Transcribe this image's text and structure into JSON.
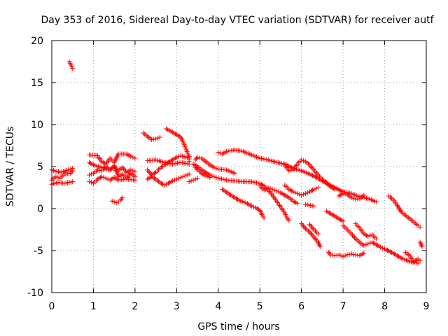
{
  "chart_data": {
    "type": "scatter",
    "title": "Day 353 of 2016, Sidereal Day-to-day VTEC variation (SDTVAR) for receiver autf",
    "xlabel": "GPS time / hours",
    "ylabel": "SDTVAR / TECUs",
    "xlim": [
      0,
      9
    ],
    "ylim": [
      -10,
      20
    ],
    "xticks": [
      0,
      1,
      2,
      3,
      4,
      5,
      6,
      7,
      8,
      9
    ],
    "yticks": [
      -10,
      -5,
      0,
      5,
      10,
      15,
      20
    ],
    "grid": true,
    "marker": "+",
    "color": "#ff0000",
    "segments": [
      {
        "name": "arc-01",
        "points": [
          [
            0.0,
            4.6
          ],
          [
            0.2,
            4.3
          ],
          [
            0.4,
            4.6
          ],
          [
            0.5,
            4.8
          ]
        ]
      },
      {
        "name": "arc-02",
        "points": [
          [
            0.0,
            3.4
          ],
          [
            0.1,
            3.8
          ],
          [
            0.2,
            3.6
          ],
          [
            0.3,
            4.1
          ],
          [
            0.45,
            4.2
          ],
          [
            0.5,
            4.5
          ]
        ]
      },
      {
        "name": "arc-03",
        "points": [
          [
            0.0,
            2.9
          ],
          [
            0.15,
            3.1
          ],
          [
            0.3,
            3.0
          ],
          [
            0.5,
            3.2
          ]
        ]
      },
      {
        "name": "arc-04",
        "points": [
          [
            0.42,
            17.5
          ],
          [
            0.46,
            17.1
          ],
          [
            0.5,
            16.7
          ]
        ]
      },
      {
        "name": "arc-05",
        "points": [
          [
            0.9,
            6.4
          ],
          [
            1.1,
            6.3
          ],
          [
            1.2,
            5.6
          ],
          [
            1.3,
            5.3
          ],
          [
            1.4,
            6.0
          ],
          [
            1.5,
            5.5
          ],
          [
            1.6,
            6.5
          ],
          [
            1.8,
            6.5
          ],
          [
            1.9,
            6.2
          ],
          [
            2.0,
            6.0
          ]
        ]
      },
      {
        "name": "arc-06",
        "points": [
          [
            0.9,
            5.5
          ],
          [
            1.0,
            5.2
          ],
          [
            1.2,
            4.9
          ],
          [
            1.4,
            4.6
          ],
          [
            1.5,
            5.0
          ],
          [
            1.6,
            4.5
          ],
          [
            1.7,
            4.9
          ],
          [
            1.8,
            4.3
          ],
          [
            1.9,
            4.6
          ],
          [
            2.0,
            4.4
          ]
        ]
      },
      {
        "name": "arc-07",
        "points": [
          [
            0.9,
            4.0
          ],
          [
            1.0,
            4.2
          ],
          [
            1.1,
            4.6
          ],
          [
            1.2,
            4.5
          ],
          [
            1.3,
            5.0
          ],
          [
            1.4,
            4.6
          ],
          [
            1.5,
            5.1
          ],
          [
            1.6,
            3.8
          ],
          [
            1.7,
            4.1
          ],
          [
            1.8,
            3.6
          ],
          [
            1.9,
            4.2
          ],
          [
            2.0,
            3.8
          ]
        ]
      },
      {
        "name": "arc-08",
        "points": [
          [
            0.9,
            3.2
          ],
          [
            1.0,
            3.0
          ],
          [
            1.1,
            3.5
          ],
          [
            1.2,
            3.8
          ],
          [
            1.3,
            3.6
          ],
          [
            1.4,
            3.4
          ],
          [
            1.5,
            3.7
          ],
          [
            1.6,
            3.4
          ],
          [
            1.8,
            3.5
          ],
          [
            2.0,
            3.4
          ]
        ]
      },
      {
        "name": "arc-09",
        "points": [
          [
            1.45,
            0.9
          ],
          [
            1.55,
            0.7
          ],
          [
            1.6,
            0.8
          ],
          [
            1.65,
            1.0
          ],
          [
            1.7,
            1.3
          ]
        ]
      },
      {
        "name": "arc-10",
        "points": [
          [
            2.2,
            9.0
          ],
          [
            2.3,
            8.6
          ],
          [
            2.4,
            8.2
          ],
          [
            2.5,
            8.3
          ],
          [
            2.6,
            8.5
          ]
        ]
      },
      {
        "name": "arc-11",
        "points": [
          [
            2.75,
            9.5
          ],
          [
            2.9,
            9.1
          ],
          [
            3.0,
            8.8
          ],
          [
            3.1,
            8.5
          ],
          [
            3.15,
            8.0
          ],
          [
            3.2,
            7.4
          ],
          [
            3.25,
            6.8
          ],
          [
            3.3,
            6.2
          ],
          [
            3.3,
            5.6
          ]
        ]
      },
      {
        "name": "arc-12",
        "points": [
          [
            2.3,
            5.7
          ],
          [
            2.5,
            5.8
          ],
          [
            2.7,
            5.5
          ],
          [
            2.9,
            5.3
          ],
          [
            3.1,
            5.5
          ],
          [
            3.3,
            5.3
          ]
        ]
      },
      {
        "name": "arc-13",
        "points": [
          [
            2.3,
            4.6
          ],
          [
            2.4,
            4.0
          ],
          [
            2.5,
            4.3
          ],
          [
            2.6,
            4.8
          ],
          [
            2.7,
            5.2
          ],
          [
            2.8,
            5.5
          ],
          [
            2.9,
            5.8
          ],
          [
            3.0,
            6.1
          ],
          [
            3.1,
            6.3
          ],
          [
            3.3,
            6.0
          ]
        ]
      },
      {
        "name": "arc-14",
        "points": [
          [
            2.3,
            3.5
          ],
          [
            2.4,
            3.8
          ],
          [
            2.5,
            3.5
          ],
          [
            2.6,
            3.1
          ],
          [
            2.7,
            2.8
          ],
          [
            2.8,
            3.0
          ],
          [
            2.9,
            3.3
          ],
          [
            3.0,
            3.5
          ],
          [
            3.1,
            3.7
          ],
          [
            3.2,
            3.9
          ],
          [
            3.3,
            4.1
          ]
        ]
      },
      {
        "name": "arc-15",
        "points": [
          [
            3.45,
            5.8
          ],
          [
            3.5,
            6.1
          ],
          [
            3.6,
            6.0
          ],
          [
            3.7,
            5.6
          ],
          [
            3.8,
            5.2
          ],
          [
            3.9,
            4.9
          ],
          [
            4.0,
            4.7
          ],
          [
            4.2,
            4.6
          ],
          [
            4.4,
            4.2
          ]
        ]
      },
      {
        "name": "arc-16",
        "points": [
          [
            3.4,
            5.3
          ],
          [
            3.5,
            5.0
          ],
          [
            3.6,
            4.6
          ],
          [
            3.7,
            4.3
          ],
          [
            3.8,
            4.0
          ],
          [
            3.9,
            3.8
          ],
          [
            4.0,
            3.6
          ],
          [
            4.2,
            3.4
          ],
          [
            4.4,
            3.3
          ],
          [
            4.6,
            3.2
          ],
          [
            4.8,
            3.2
          ],
          [
            5.0,
            3.0
          ],
          [
            5.1,
            2.7
          ]
        ]
      },
      {
        "name": "arc-17",
        "points": [
          [
            3.45,
            4.9
          ],
          [
            3.6,
            4.2
          ],
          [
            3.7,
            3.9
          ],
          [
            3.8,
            3.7
          ]
        ]
      },
      {
        "name": "arc-18",
        "points": [
          [
            3.3,
            3.2
          ],
          [
            3.4,
            3.4
          ],
          [
            3.5,
            3.6
          ]
        ]
      },
      {
        "name": "arc-19",
        "points": [
          [
            4.0,
            6.7
          ],
          [
            4.1,
            6.5
          ],
          [
            4.2,
            6.8
          ],
          [
            4.4,
            7.0
          ],
          [
            4.6,
            6.8
          ],
          [
            4.8,
            6.4
          ],
          [
            5.0,
            6.0
          ],
          [
            5.2,
            5.8
          ],
          [
            5.4,
            5.5
          ],
          [
            5.6,
            5.3
          ],
          [
            5.8,
            4.8
          ],
          [
            6.0,
            4.5
          ],
          [
            6.2,
            4.1
          ],
          [
            6.4,
            3.6
          ],
          [
            6.6,
            3.0
          ],
          [
            6.8,
            2.5
          ],
          [
            7.0,
            2.0
          ],
          [
            7.2,
            1.8
          ],
          [
            7.4,
            1.4
          ],
          [
            7.6,
            1.2
          ],
          [
            7.8,
            0.8
          ]
        ]
      },
      {
        "name": "arc-20",
        "points": [
          [
            5.6,
            5.2
          ],
          [
            5.7,
            4.5
          ],
          [
            5.8,
            4.6
          ],
          [
            5.9,
            5.3
          ],
          [
            6.0,
            5.8
          ],
          [
            6.1,
            5.6
          ],
          [
            6.2,
            5.2
          ],
          [
            6.3,
            4.6
          ],
          [
            6.4,
            4.0
          ],
          [
            6.5,
            3.5
          ],
          [
            6.6,
            3.1
          ],
          [
            6.7,
            2.6
          ],
          [
            6.8,
            2.3
          ]
        ]
      },
      {
        "name": "arc-21",
        "points": [
          [
            4.1,
            2.3
          ],
          [
            4.3,
            1.6
          ],
          [
            4.5,
            1.0
          ],
          [
            4.7,
            0.6
          ],
          [
            4.8,
            0.3
          ],
          [
            4.9,
            0.1
          ],
          [
            5.0,
            -0.2
          ],
          [
            5.05,
            -0.7
          ],
          [
            5.1,
            -1.1
          ]
        ]
      },
      {
        "name": "arc-22",
        "points": [
          [
            5.1,
            2.7
          ],
          [
            5.2,
            2.2
          ],
          [
            5.3,
            1.6
          ],
          [
            5.4,
            0.9
          ],
          [
            5.5,
            0.2
          ],
          [
            5.6,
            -0.5
          ],
          [
            5.65,
            -1.1
          ],
          [
            5.7,
            -1.4
          ]
        ]
      },
      {
        "name": "arc-23",
        "points": [
          [
            5.0,
            2.7
          ],
          [
            5.1,
            2.2
          ],
          [
            5.2,
            2.5
          ],
          [
            5.3,
            2.3
          ],
          [
            5.4,
            2.1
          ],
          [
            5.5,
            1.9
          ],
          [
            5.6,
            1.6
          ],
          [
            5.7,
            1.3
          ],
          [
            5.8,
            0.9
          ],
          [
            5.9,
            0.6
          ]
        ]
      },
      {
        "name": "arc-24",
        "points": [
          [
            5.6,
            2.8
          ],
          [
            5.7,
            2.3
          ],
          [
            5.8,
            2.0
          ],
          [
            5.9,
            1.8
          ],
          [
            6.0,
            1.6
          ],
          [
            6.1,
            1.8
          ],
          [
            6.2,
            2.0
          ],
          [
            6.3,
            2.3
          ],
          [
            6.4,
            2.5
          ]
        ]
      },
      {
        "name": "arc-25",
        "points": [
          [
            6.0,
            -1.8
          ],
          [
            6.1,
            -2.4
          ],
          [
            6.2,
            -2.8
          ],
          [
            6.3,
            -3.4
          ],
          [
            6.4,
            -4.0
          ],
          [
            6.45,
            -4.5
          ]
        ]
      },
      {
        "name": "arc-26",
        "points": [
          [
            6.2,
            -1.9
          ],
          [
            6.3,
            -2.5
          ],
          [
            6.4,
            -3.0
          ]
        ]
      },
      {
        "name": "arc-27",
        "points": [
          [
            6.1,
            0.5
          ],
          [
            6.3,
            0.3
          ]
        ]
      },
      {
        "name": "arc-28",
        "points": [
          [
            6.6,
            -0.3
          ],
          [
            6.7,
            -0.6
          ],
          [
            6.8,
            -0.9
          ],
          [
            6.9,
            -1.2
          ],
          [
            7.0,
            -1.5
          ]
        ]
      },
      {
        "name": "arc-29",
        "points": [
          [
            6.9,
            1.5
          ],
          [
            7.0,
            1.8
          ],
          [
            7.1,
            1.7
          ],
          [
            7.2,
            1.3
          ],
          [
            7.3,
            1.1
          ],
          [
            7.4,
            1.2
          ],
          [
            7.5,
            1.6
          ]
        ]
      },
      {
        "name": "arc-30",
        "points": [
          [
            7.0,
            -2.0
          ],
          [
            7.1,
            -2.5
          ],
          [
            7.2,
            -3.0
          ],
          [
            7.3,
            -3.6
          ],
          [
            7.4,
            -4.0
          ],
          [
            7.5,
            -4.4
          ],
          [
            7.6,
            -4.2
          ],
          [
            7.7,
            -4.0
          ],
          [
            7.8,
            -4.3
          ],
          [
            7.9,
            -4.6
          ],
          [
            8.0,
            -4.8
          ],
          [
            8.2,
            -5.3
          ],
          [
            8.4,
            -5.9
          ],
          [
            8.6,
            -6.3
          ],
          [
            8.8,
            -6.5
          ]
        ]
      },
      {
        "name": "arc-31",
        "points": [
          [
            7.3,
            -1.8
          ],
          [
            7.4,
            -2.3
          ],
          [
            7.5,
            -3.0
          ],
          [
            7.6,
            -3.3
          ],
          [
            7.7,
            -3.1
          ],
          [
            7.8,
            -3.6
          ]
        ]
      },
      {
        "name": "arc-32",
        "points": [
          [
            6.65,
            -5.2
          ],
          [
            6.7,
            -5.5
          ],
          [
            6.8,
            -5.6
          ],
          [
            6.9,
            -5.5
          ],
          [
            7.0,
            -5.7
          ],
          [
            7.1,
            -5.5
          ],
          [
            7.2,
            -5.4
          ],
          [
            7.3,
            -5.5
          ],
          [
            7.4,
            -5.6
          ],
          [
            7.5,
            -5.3
          ]
        ]
      },
      {
        "name": "arc-33",
        "points": [
          [
            8.1,
            1.5
          ],
          [
            8.2,
            1.1
          ],
          [
            8.3,
            0.4
          ],
          [
            8.4,
            -0.4
          ],
          [
            8.5,
            -0.8
          ],
          [
            8.6,
            -1.2
          ],
          [
            8.7,
            -1.6
          ],
          [
            8.8,
            -2.0
          ],
          [
            8.85,
            -2.2
          ]
        ]
      },
      {
        "name": "arc-34",
        "points": [
          [
            8.5,
            -5.2
          ],
          [
            8.6,
            -5.6
          ],
          [
            8.7,
            -6.3
          ],
          [
            8.8,
            -6.0
          ],
          [
            8.85,
            -6.2
          ]
        ]
      },
      {
        "name": "arc-35",
        "points": [
          [
            8.85,
            -4.0
          ],
          [
            8.9,
            -4.5
          ]
        ]
      }
    ]
  }
}
